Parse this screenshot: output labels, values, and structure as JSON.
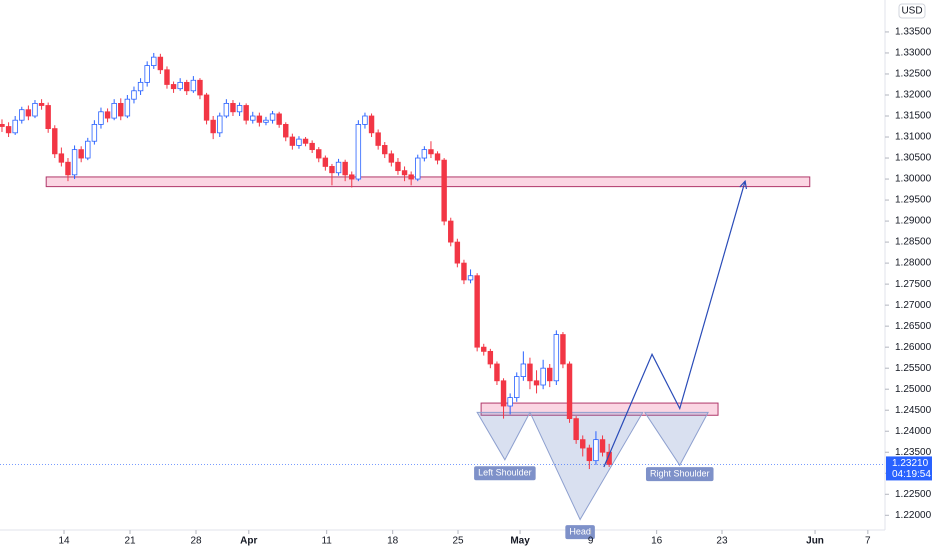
{
  "chart_data": {
    "type": "candlestick",
    "currency": "USD",
    "last_price": {
      "value": 1.2321,
      "label": "1.23210"
    },
    "countdown": "04:19:54",
    "up_color": "#2962ff",
    "down_color": "#f23645",
    "xlim": [
      -0.3,
      133.8
    ],
    "ylim": [
      1.2165,
      1.3426
    ],
    "xticks": [
      {
        "value": 9.4,
        "label": "14"
      },
      {
        "value": 19.4,
        "label": "21"
      },
      {
        "value": 29.4,
        "label": "28"
      },
      {
        "value": 37.4,
        "label": "Apr"
      },
      {
        "value": 49.2,
        "label": "11"
      },
      {
        "value": 59.2,
        "label": "18"
      },
      {
        "value": 69.1,
        "label": "25"
      },
      {
        "value": 78.5,
        "label": "May"
      },
      {
        "value": 89.2,
        "label": "9"
      },
      {
        "value": 99.2,
        "label": "16"
      },
      {
        "value": 109.1,
        "label": "23"
      },
      {
        "value": 123.2,
        "label": "Jun"
      },
      {
        "value": 131.2,
        "label": "7"
      }
    ],
    "yticks": [
      {
        "value": 1.22,
        "label": "1.22000"
      },
      {
        "value": 1.225,
        "label": "1.22500"
      },
      {
        "value": 1.23,
        "label": "1.23000"
      },
      {
        "value": 1.235,
        "label": "1.23500"
      },
      {
        "value": 1.24,
        "label": "1.24000"
      },
      {
        "value": 1.245,
        "label": "1.24500"
      },
      {
        "value": 1.25,
        "label": "1.25000"
      },
      {
        "value": 1.255,
        "label": "1.25500"
      },
      {
        "value": 1.26,
        "label": "1.26000"
      },
      {
        "value": 1.265,
        "label": "1.26500"
      },
      {
        "value": 1.27,
        "label": "1.27000"
      },
      {
        "value": 1.275,
        "label": "1.27500"
      },
      {
        "value": 1.28,
        "label": "1.28000"
      },
      {
        "value": 1.285,
        "label": "1.28500"
      },
      {
        "value": 1.29,
        "label": "1.29000"
      },
      {
        "value": 1.295,
        "label": "1.29500"
      },
      {
        "value": 1.3,
        "label": "1.30000"
      },
      {
        "value": 1.305,
        "label": "1.30500"
      },
      {
        "value": 1.31,
        "label": "1.31000"
      },
      {
        "value": 1.315,
        "label": "1.31500"
      },
      {
        "value": 1.32,
        "label": "1.32000"
      },
      {
        "value": 1.325,
        "label": "1.32500"
      },
      {
        "value": 1.33,
        "label": "1.33000"
      },
      {
        "value": 1.335,
        "label": "1.33500"
      }
    ],
    "candles": [
      [
        1.313,
        1.3142,
        1.3112,
        1.3125
      ],
      [
        1.3125,
        1.3135,
        1.31,
        1.311
      ],
      [
        1.311,
        1.315,
        1.3105,
        1.314
      ],
      [
        1.314,
        1.3172,
        1.3132,
        1.3165
      ],
      [
        1.3165,
        1.3175,
        1.314,
        1.315
      ],
      [
        1.315,
        1.3188,
        1.3145,
        1.318
      ],
      [
        1.318,
        1.319,
        1.3165,
        1.3175
      ],
      [
        1.3175,
        1.3182,
        1.311,
        1.312
      ],
      [
        1.312,
        1.3128,
        1.305,
        1.306
      ],
      [
        1.306,
        1.3075,
        1.303,
        1.304
      ],
      [
        1.304,
        1.305,
        1.2995,
        1.301
      ],
      [
        1.301,
        1.308,
        1.3,
        1.307
      ],
      [
        1.307,
        1.3078,
        1.304,
        1.305
      ],
      [
        1.305,
        1.3098,
        1.3045,
        1.309
      ],
      [
        1.309,
        1.314,
        1.3082,
        1.313
      ],
      [
        1.313,
        1.317,
        1.312,
        1.316
      ],
      [
        1.316,
        1.3168,
        1.3135,
        1.3145
      ],
      [
        1.3145,
        1.319,
        1.314,
        1.318
      ],
      [
        1.318,
        1.3192,
        1.314,
        1.315
      ],
      [
        1.315,
        1.32,
        1.3145,
        1.319
      ],
      [
        1.319,
        1.322,
        1.318,
        1.321
      ],
      [
        1.321,
        1.324,
        1.32,
        1.323
      ],
      [
        1.323,
        1.328,
        1.322,
        1.327
      ],
      [
        1.327,
        1.33,
        1.3262,
        1.329
      ],
      [
        1.329,
        1.3298,
        1.325,
        1.326
      ],
      [
        1.326,
        1.3268,
        1.3215,
        1.3225
      ],
      [
        1.3225,
        1.3232,
        1.3205,
        1.3215
      ],
      [
        1.3215,
        1.324,
        1.321,
        1.323
      ],
      [
        1.323,
        1.3236,
        1.32,
        1.321
      ],
      [
        1.321,
        1.3245,
        1.3205,
        1.3235
      ],
      [
        1.3235,
        1.324,
        1.319,
        1.32
      ],
      [
        1.32,
        1.3205,
        1.313,
        1.314
      ],
      [
        1.314,
        1.315,
        1.3095,
        1.311
      ],
      [
        1.311,
        1.3158,
        1.31,
        1.315
      ],
      [
        1.315,
        1.319,
        1.3145,
        1.318
      ],
      [
        1.318,
        1.3188,
        1.315,
        1.316
      ],
      [
        1.316,
        1.3182,
        1.315,
        1.3175
      ],
      [
        1.3175,
        1.318,
        1.313,
        1.314
      ],
      [
        1.314,
        1.316,
        1.3132,
        1.315
      ],
      [
        1.315,
        1.3158,
        1.3125,
        1.3135
      ],
      [
        1.3135,
        1.3148,
        1.3128,
        1.314
      ],
      [
        1.314,
        1.3162,
        1.3132,
        1.3155
      ],
      [
        1.3155,
        1.316,
        1.3122,
        1.313
      ],
      [
        1.313,
        1.3135,
        1.309,
        1.31
      ],
      [
        1.31,
        1.3108,
        1.307,
        1.308
      ],
      [
        1.308,
        1.3102,
        1.3072,
        1.3095
      ],
      [
        1.3095,
        1.31,
        1.3078,
        1.3085
      ],
      [
        1.3085,
        1.3092,
        1.3062,
        1.307
      ],
      [
        1.307,
        1.3076,
        1.304,
        1.305
      ],
      [
        1.305,
        1.3056,
        1.302,
        1.303
      ],
      [
        1.303,
        1.3036,
        1.2985,
        1.3015
      ],
      [
        1.3015,
        1.3048,
        1.3008,
        1.304
      ],
      [
        1.304,
        1.3046,
        1.2995,
        1.301
      ],
      [
        1.301,
        1.3018,
        1.298,
        1.3
      ],
      [
        1.3,
        1.314,
        1.2995,
        1.313
      ],
      [
        1.313,
        1.3158,
        1.312,
        1.315
      ],
      [
        1.315,
        1.3156,
        1.31,
        1.311
      ],
      [
        1.311,
        1.3118,
        1.307,
        1.308
      ],
      [
        1.308,
        1.3088,
        1.305,
        1.306
      ],
      [
        1.306,
        1.3068,
        1.303,
        1.304
      ],
      [
        1.304,
        1.305,
        1.301,
        1.302
      ],
      [
        1.302,
        1.303,
        1.2995,
        1.301
      ],
      [
        1.301,
        1.3018,
        1.2985,
        1.3
      ],
      [
        1.3,
        1.3058,
        1.2995,
        1.305
      ],
      [
        1.305,
        1.3078,
        1.3042,
        1.307
      ],
      [
        1.307,
        1.309,
        1.305,
        1.306
      ],
      [
        1.306,
        1.3066,
        1.3035,
        1.3045
      ],
      [
        1.3045,
        1.305,
        1.289,
        1.29
      ],
      [
        1.29,
        1.2908,
        1.284,
        1.285
      ],
      [
        1.285,
        1.2858,
        1.279,
        1.28
      ],
      [
        1.28,
        1.2808,
        1.275,
        1.276
      ],
      [
        1.276,
        1.2785,
        1.2752,
        1.277
      ],
      [
        1.277,
        1.2776,
        1.259,
        1.26
      ],
      [
        1.26,
        1.2608,
        1.258,
        1.259
      ],
      [
        1.259,
        1.2596,
        1.255,
        1.256
      ],
      [
        1.256,
        1.2566,
        1.251,
        1.252
      ],
      [
        1.252,
        1.2526,
        1.243,
        1.246
      ],
      [
        1.246,
        1.249,
        1.244,
        1.248
      ],
      [
        1.248,
        1.254,
        1.247,
        1.253
      ],
      [
        1.253,
        1.259,
        1.252,
        1.256
      ],
      [
        1.256,
        1.2575,
        1.25,
        1.252
      ],
      [
        1.252,
        1.2545,
        1.249,
        1.251
      ],
      [
        1.251,
        1.257,
        1.25,
        1.255
      ],
      [
        1.255,
        1.256,
        1.2505,
        1.252
      ],
      [
        1.252,
        1.264,
        1.251,
        1.263
      ],
      [
        1.263,
        1.2636,
        1.255,
        1.256
      ],
      [
        1.256,
        1.2566,
        1.242,
        1.243
      ],
      [
        1.243,
        1.2436,
        1.237,
        1.238
      ],
      [
        1.238,
        1.239,
        1.234,
        1.236
      ],
      [
        1.236,
        1.2368,
        1.231,
        1.233
      ],
      [
        1.233,
        1.24,
        1.232,
        1.238
      ],
      [
        1.238,
        1.239,
        1.234,
        1.235
      ],
      [
        1.235,
        1.237,
        1.2315,
        1.2321
      ]
    ],
    "zones": [
      {
        "x": [
          6.7,
          122.4
        ],
        "y": [
          1.2982,
          1.3005
        ]
      },
      {
        "x": [
          72.6,
          108.5
        ],
        "y": [
          1.2438,
          1.2467
        ]
      }
    ],
    "patterns": [
      {
        "x": [
          72,
          76.2,
          80
        ],
        "y": [
          1.2445,
          1.2332,
          1.2445
        ]
      },
      {
        "x": [
          80,
          87.6,
          97.1
        ],
        "y": [
          1.2445,
          1.219,
          1.2445
        ]
      },
      {
        "x": [
          97.4,
          102.7,
          107
        ],
        "y": [
          1.2445,
          1.2319,
          1.2445
        ]
      }
    ],
    "projection": {
      "x": [
        91.2,
        98.5,
        102.7,
        112.6
      ],
      "y": [
        1.2315,
        1.2583,
        1.2454,
        1.2995
      ]
    },
    "annotations": [
      {
        "text": "Left Shoulder",
        "x": 76.2,
        "y": 1.23
      },
      {
        "text": "Head",
        "x": 87.6,
        "y": 1.216
      },
      {
        "text": "Right Shoulder",
        "x": 102.7,
        "y": 1.2298
      }
    ]
  }
}
